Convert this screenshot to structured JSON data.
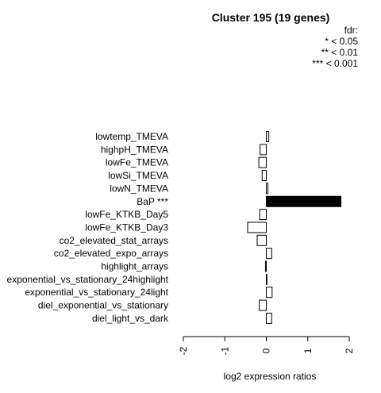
{
  "chart_data": {
    "type": "bar",
    "orientation": "horizontal",
    "title": "Cluster 195 (19 genes)",
    "legend": {
      "placement": "top-right",
      "lines": [
        "fdr:",
        "* < 0.05",
        "** < 0.01",
        "*** < 0.001"
      ]
    },
    "xlabel": "log2 expression ratios",
    "ylabel": "",
    "xlim": [
      -2,
      2
    ],
    "xticks": [
      -2,
      -1,
      0,
      1,
      2
    ],
    "grid": false,
    "bar_color_significant": "#000000",
    "bar_color_default": "#ffffff",
    "categories": [
      "lowtemp_TMEVA",
      "highpH_TMEVA",
      "lowFe_TMEVA",
      "lowSi_TMEVA",
      "lowN_TMEVA",
      "BaP ***",
      "lowFe_KTKB_Day5",
      "lowFe_KTKB_Day3",
      "co2_elevated_stat_arrays",
      "co2_elevated_expo_arrays",
      "highlight_arrays",
      "exponential_vs_stationary_24highlight",
      "exponential_vs_stationary_24light",
      "diel_exponential_vs_stationary",
      "diel_light_vs_dark"
    ],
    "values": [
      0.06,
      -0.15,
      -0.18,
      -0.1,
      0.04,
      1.8,
      -0.16,
      -0.45,
      -0.22,
      0.13,
      -0.02,
      0.01,
      0.14,
      -0.17,
      0.13
    ],
    "significant": [
      false,
      false,
      false,
      false,
      false,
      true,
      false,
      false,
      false,
      false,
      false,
      false,
      false,
      false,
      false
    ]
  }
}
